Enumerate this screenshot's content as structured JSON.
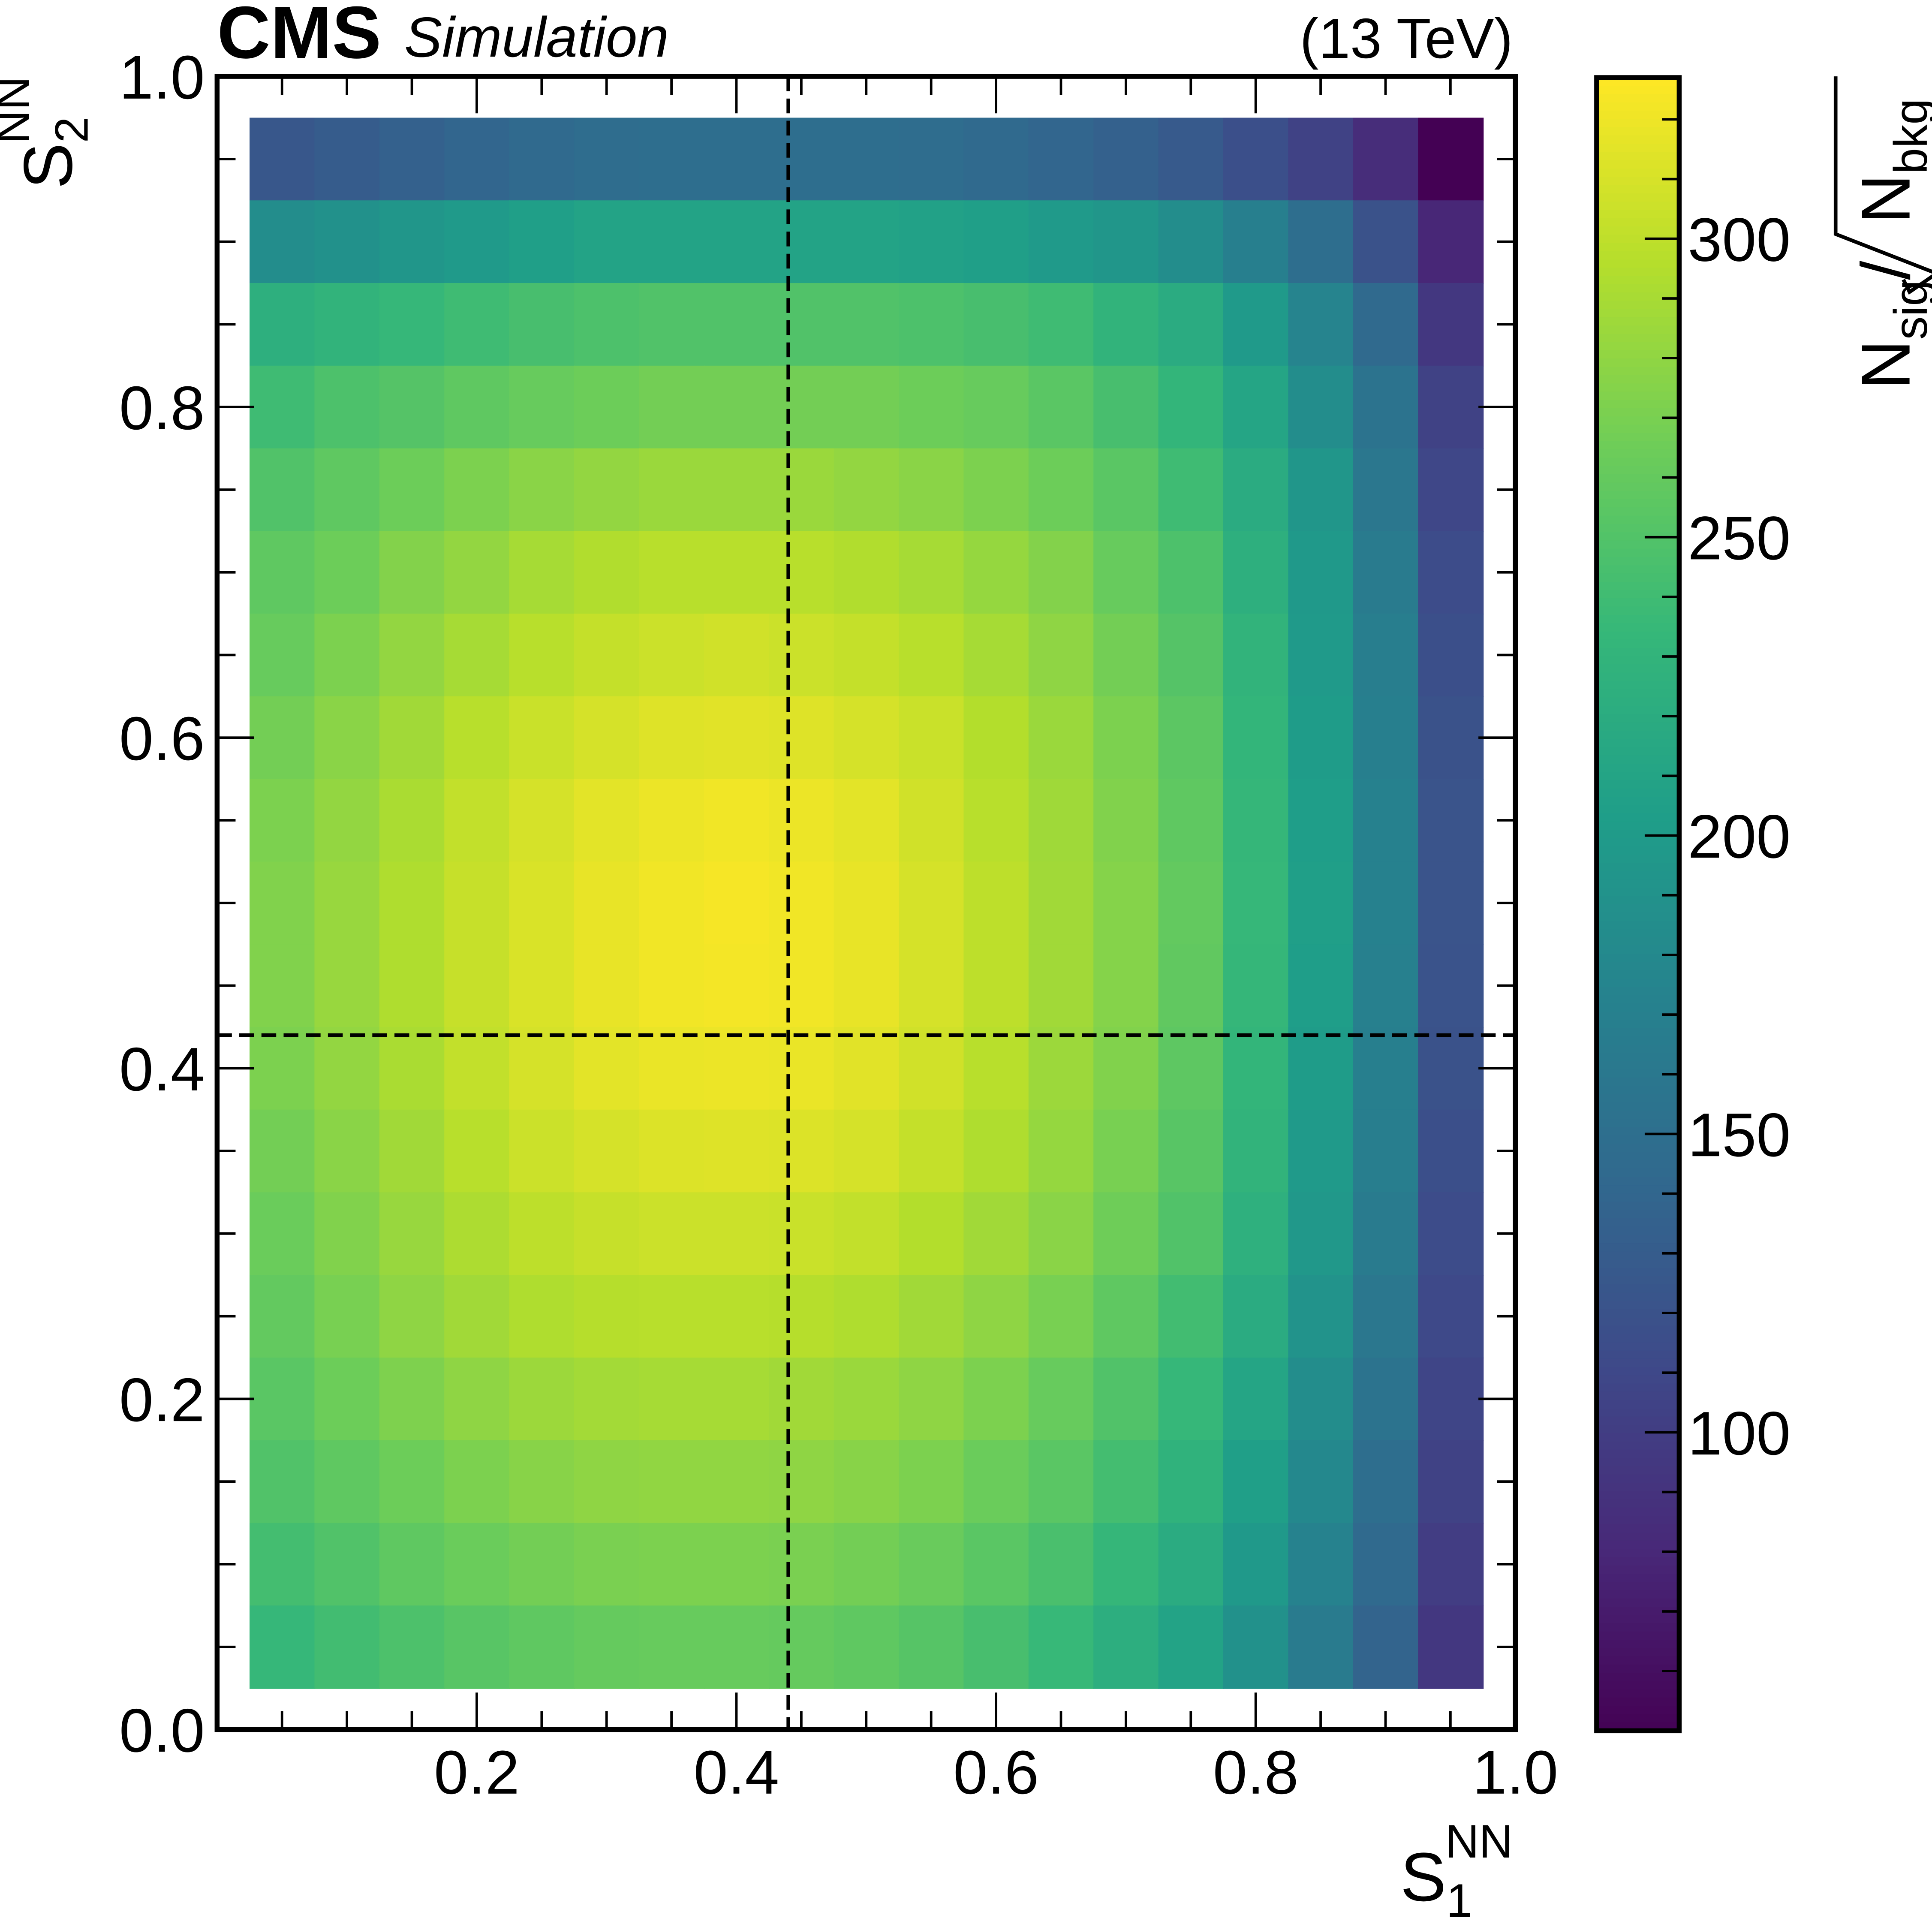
{
  "header": {
    "experiment": "CMS",
    "tag": "Simulation",
    "energy": "(13 TeV)"
  },
  "chart_data": {
    "type": "heatmap",
    "xlabel": {
      "base": "S",
      "sub": "1",
      "sup": "NN"
    },
    "ylabel": {
      "base": "S",
      "sub": "2",
      "sup": "NN"
    },
    "zlabel": {
      "num": "N",
      "num_sub": "sig",
      "den": "N",
      "den_sub": "bkg",
      "slash": "/"
    },
    "xlim": [
      0.0,
      1.0
    ],
    "ylim": [
      0.0,
      1.0
    ],
    "zlim": [
      50,
      327
    ],
    "x_ticks": [
      "0.2",
      "0.4",
      "0.6",
      "0.8",
      "1.0"
    ],
    "x_tick_values": [
      0.2,
      0.4,
      0.6,
      0.8,
      1.0
    ],
    "y_ticks": [
      "0.0",
      "0.2",
      "0.4",
      "0.6",
      "0.8",
      "1.0"
    ],
    "y_tick_values": [
      0.0,
      0.2,
      0.4,
      0.6,
      0.8,
      1.0
    ],
    "z_ticks": [
      "100",
      "150",
      "200",
      "250",
      "300"
    ],
    "z_tick_values": [
      100,
      150,
      200,
      250,
      300
    ],
    "colormap": "viridis",
    "x_centers": [
      0.05,
      0.1,
      0.15,
      0.2,
      0.25,
      0.3,
      0.35,
      0.4,
      0.45,
      0.5,
      0.55,
      0.6,
      0.65,
      0.7,
      0.75,
      0.8,
      0.85,
      0.9,
      0.95
    ],
    "y_centers": [
      0.95,
      0.9,
      0.85,
      0.8,
      0.75,
      0.7,
      0.65,
      0.6,
      0.55,
      0.5,
      0.45,
      0.4,
      0.35,
      0.3,
      0.25,
      0.2,
      0.15,
      0.1,
      0.05
    ],
    "bin_width": 0.05,
    "values": [
      [
        125,
        130,
        135,
        140,
        145,
        148,
        150,
        150,
        150,
        150,
        148,
        145,
        140,
        135,
        128,
        118,
        105,
        85,
        50
      ],
      [
        185,
        190,
        195,
        200,
        205,
        210,
        210,
        210,
        210,
        210,
        208,
        205,
        200,
        195,
        185,
        170,
        150,
        120,
        80
      ],
      [
        225,
        230,
        235,
        240,
        245,
        248,
        250,
        250,
        250,
        250,
        248,
        245,
        240,
        230,
        220,
        200,
        175,
        145,
        95
      ],
      [
        240,
        248,
        252,
        258,
        262,
        265,
        268,
        268,
        268,
        268,
        265,
        262,
        255,
        245,
        232,
        212,
        185,
        155,
        105
      ],
      [
        250,
        258,
        265,
        272,
        278,
        282,
        285,
        285,
        285,
        282,
        278,
        272,
        265,
        255,
        240,
        220,
        195,
        160,
        110
      ],
      [
        258,
        265,
        275,
        282,
        290,
        295,
        298,
        298,
        298,
        295,
        290,
        283,
        275,
        262,
        248,
        225,
        198,
        165,
        115
      ],
      [
        262,
        272,
        282,
        290,
        298,
        303,
        306,
        308,
        306,
        303,
        298,
        290,
        280,
        268,
        252,
        230,
        200,
        168,
        118
      ],
      [
        268,
        278,
        288,
        298,
        305,
        310,
        314,
        315,
        314,
        310,
        305,
        296,
        285,
        272,
        256,
        232,
        202,
        170,
        120
      ],
      [
        272,
        282,
        292,
        302,
        310,
        316,
        320,
        322,
        320,
        316,
        308,
        298,
        287,
        274,
        258,
        234,
        204,
        172,
        122
      ],
      [
        274,
        284,
        294,
        304,
        312,
        318,
        322,
        324,
        322,
        318,
        310,
        300,
        288,
        276,
        260,
        235,
        205,
        172,
        122
      ],
      [
        274,
        284,
        294,
        304,
        312,
        318,
        322,
        323,
        322,
        318,
        310,
        300,
        288,
        276,
        259,
        234,
        204,
        171,
        121
      ],
      [
        272,
        282,
        292,
        302,
        310,
        316,
        319,
        320,
        319,
        315,
        308,
        298,
        286,
        274,
        257,
        232,
        202,
        170,
        120
      ],
      [
        268,
        278,
        288,
        298,
        306,
        310,
        313,
        314,
        313,
        310,
        303,
        294,
        283,
        270,
        254,
        230,
        200,
        168,
        118
      ],
      [
        264,
        274,
        284,
        293,
        300,
        304,
        306,
        306,
        305,
        302,
        296,
        288,
        278,
        266,
        250,
        226,
        197,
        165,
        115
      ],
      [
        260,
        270,
        280,
        288,
        294,
        297,
        298,
        298,
        297,
        294,
        288,
        280,
        270,
        258,
        242,
        220,
        192,
        160,
        112
      ],
      [
        255,
        265,
        273,
        280,
        286,
        289,
        290,
        290,
        288,
        285,
        280,
        272,
        262,
        250,
        235,
        212,
        185,
        155,
        108
      ],
      [
        250,
        258,
        265,
        272,
        277,
        280,
        281,
        281,
        280,
        277,
        272,
        264,
        255,
        243,
        228,
        205,
        180,
        150,
        105
      ],
      [
        243,
        250,
        258,
        264,
        268,
        271,
        272,
        272,
        271,
        268,
        263,
        255,
        246,
        234,
        220,
        198,
        173,
        145,
        100
      ],
      [
        235,
        242,
        248,
        254,
        258,
        261,
        262,
        262,
        261,
        258,
        253,
        245,
        236,
        224,
        210,
        190,
        165,
        138,
        95
      ]
    ],
    "cut_lines": {
      "x": 0.44,
      "y": 0.42,
      "style": "dashed",
      "color": "#000000"
    }
  }
}
